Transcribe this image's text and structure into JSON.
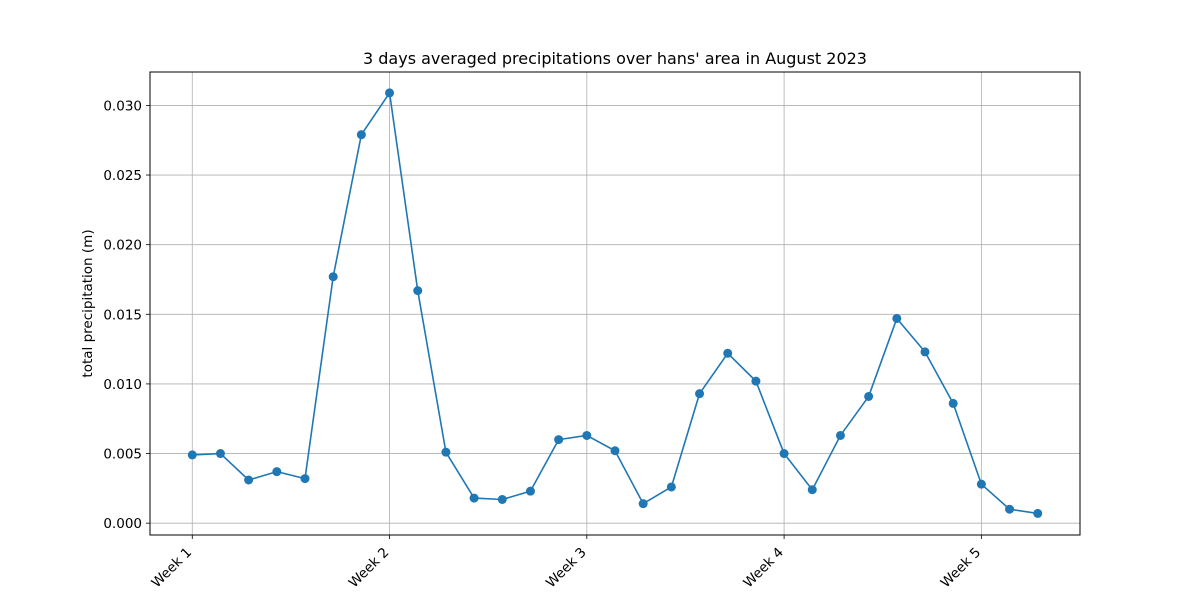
{
  "chart_data": {
    "type": "line",
    "title": "3 days averaged precipitations over hans' area in August 2023",
    "xlabel": "",
    "ylabel": "total precipitation (m)",
    "x_tick_labels": [
      "Week 1",
      "Week 2",
      "Week 3",
      "Week 4",
      "Week 5"
    ],
    "x_tick_positions": [
      0,
      7,
      14,
      21,
      28
    ],
    "y_tick_labels": [
      "0.000",
      "0.005",
      "0.010",
      "0.015",
      "0.020",
      "0.025",
      "0.030"
    ],
    "y_ticks": [
      0,
      0.005,
      0.01,
      0.015,
      0.02,
      0.025,
      0.03
    ],
    "xlim": [
      -1.5,
      31.5
    ],
    "ylim": [
      -0.00085,
      0.0324
    ],
    "grid": true,
    "series_color": "#1f77b4",
    "series": [
      {
        "marker": "circle",
        "x": [
          0,
          1,
          2,
          3,
          4,
          5,
          6,
          7,
          8,
          9,
          10,
          11,
          12,
          13,
          14,
          15,
          16,
          17,
          18,
          19,
          20,
          21,
          22,
          23,
          24,
          25,
          26,
          27,
          28,
          29,
          30
        ],
        "values": [
          0.0049,
          0.005,
          0.0031,
          0.0037,
          0.0032,
          0.0177,
          0.0279,
          0.0309,
          0.0167,
          0.0051,
          0.0018,
          0.0017,
          0.0023,
          0.006,
          0.0063,
          0.0052,
          0.0014,
          0.0026,
          0.0093,
          0.0122,
          0.0102,
          0.005,
          0.0024,
          0.0063,
          0.0091,
          0.0147,
          0.0123,
          0.0086,
          0.0028,
          0.001,
          0.0007
        ]
      }
    ]
  }
}
